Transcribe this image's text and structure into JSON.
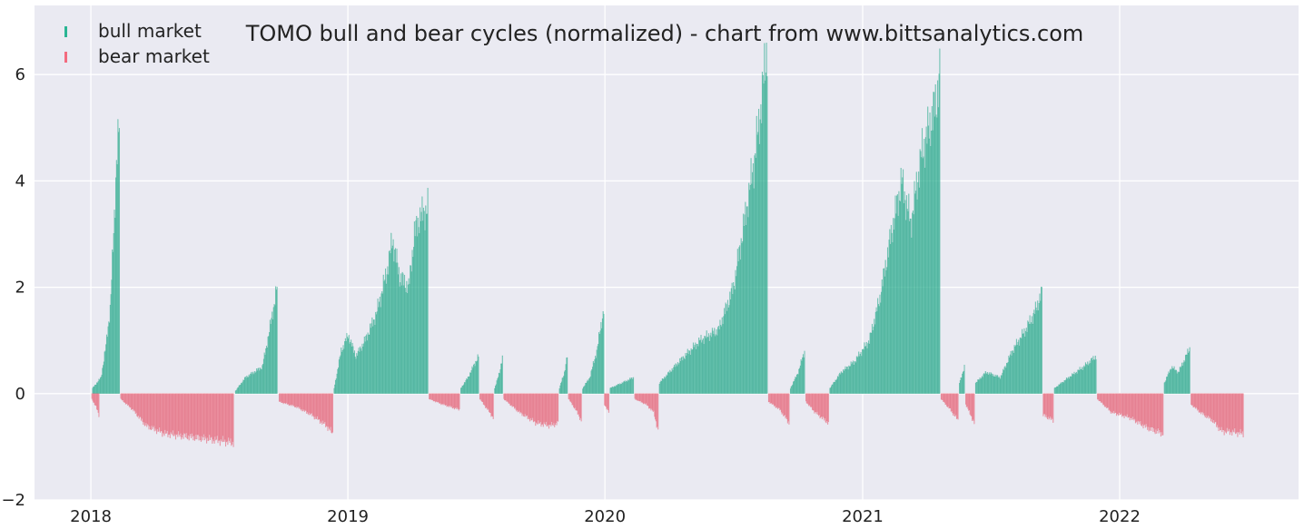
{
  "chart_data": {
    "type": "bar",
    "title": "TOMO bull and bear cycles (normalized)  - chart from www.bittsanalytics.com",
    "xlabel": "",
    "ylabel": "",
    "xlim": [
      "2017-10-13",
      "2022-09-12"
    ],
    "ylim": [
      -2,
      7.3
    ],
    "x_ticks": [
      "2018",
      "2019",
      "2020",
      "2021",
      "2022"
    ],
    "x_tick_dates": [
      "2018-01-01",
      "2019-01-01",
      "2020-01-01",
      "2021-01-01",
      "2022-01-01"
    ],
    "y_ticks": [
      -2,
      0,
      2,
      4,
      6
    ],
    "y_tick_labels": [
      "−2",
      "0",
      "2",
      "4",
      "6"
    ],
    "grid": true,
    "legend_position": "top-left",
    "colors": {
      "bull": "#2ab594",
      "bear": "#f36b7f",
      "background": "#eaeaf2",
      "grid": "#ffffff"
    },
    "series": [
      {
        "name": "bull market",
        "segments": [
          {
            "start": "2018-01-03",
            "end": "2018-02-10",
            "points": [
              [
                "2018-01-03",
                0.1
              ],
              [
                "2018-01-15",
                0.3
              ],
              [
                "2018-01-22",
                0.9
              ],
              [
                "2018-01-28",
                1.6
              ],
              [
                "2018-02-02",
                3.0
              ],
              [
                "2018-02-06",
                4.4
              ],
              [
                "2018-02-10",
                5.0
              ]
            ]
          },
          {
            "start": "2018-07-25",
            "end": "2018-09-22",
            "points": [
              [
                "2018-07-25",
                0.05
              ],
              [
                "2018-08-08",
                0.3
              ],
              [
                "2018-08-20",
                0.4
              ],
              [
                "2018-09-01",
                0.5
              ],
              [
                "2018-09-10",
                1.1
              ],
              [
                "2018-09-18",
                1.7
              ],
              [
                "2018-09-22",
                2.0
              ]
            ]
          },
          {
            "start": "2018-12-12",
            "end": "2019-04-24",
            "points": [
              [
                "2018-12-12",
                0.1
              ],
              [
                "2018-12-22",
                0.8
              ],
              [
                "2019-01-01",
                1.1
              ],
              [
                "2019-01-12",
                0.7
              ],
              [
                "2019-01-25",
                1.0
              ],
              [
                "2019-02-10",
                1.5
              ],
              [
                "2019-02-25",
                2.3
              ],
              [
                "2019-03-05",
                2.9
              ],
              [
                "2019-03-15",
                2.2
              ],
              [
                "2019-03-28",
                2.0
              ],
              [
                "2019-04-05",
                3.0
              ],
              [
                "2019-04-12",
                3.3
              ],
              [
                "2019-04-24",
                3.5
              ]
            ]
          },
          {
            "start": "2019-06-10",
            "end": "2019-07-05",
            "points": [
              [
                "2019-06-10",
                0.1
              ],
              [
                "2019-06-20",
                0.3
              ],
              [
                "2019-07-01",
                0.6
              ],
              [
                "2019-07-05",
                0.7
              ]
            ]
          },
          {
            "start": "2019-07-28",
            "end": "2019-08-08",
            "points": [
              [
                "2019-07-28",
                0.1
              ],
              [
                "2019-08-04",
                0.4
              ],
              [
                "2019-08-08",
                0.7
              ]
            ]
          },
          {
            "start": "2019-10-28",
            "end": "2019-11-08",
            "points": [
              [
                "2019-10-28",
                0.1
              ],
              [
                "2019-11-04",
                0.4
              ],
              [
                "2019-11-08",
                0.7
              ]
            ]
          },
          {
            "start": "2019-11-30",
            "end": "2019-12-30",
            "points": [
              [
                "2019-11-30",
                0.1
              ],
              [
                "2019-12-10",
                0.3
              ],
              [
                "2019-12-20",
                0.8
              ],
              [
                "2019-12-30",
                1.6
              ]
            ]
          },
          {
            "start": "2020-01-08",
            "end": "2020-02-10",
            "points": [
              [
                "2020-01-08",
                0.1
              ],
              [
                "2020-01-25",
                0.2
              ],
              [
                "2020-02-10",
                0.3
              ]
            ]
          },
          {
            "start": "2020-03-18",
            "end": "2020-08-18",
            "points": [
              [
                "2020-03-18",
                0.2
              ],
              [
                "2020-04-15",
                0.6
              ],
              [
                "2020-05-15",
                1.0
              ],
              [
                "2020-06-10",
                1.2
              ],
              [
                "2020-07-01",
                2.0
              ],
              [
                "2020-07-20",
                3.5
              ],
              [
                "2020-08-01",
                4.5
              ],
              [
                "2020-08-10",
                5.5
              ],
              [
                "2020-08-18",
                6.6
              ]
            ]
          },
          {
            "start": "2020-09-20",
            "end": "2020-10-10",
            "points": [
              [
                "2020-09-20",
                0.1
              ],
              [
                "2020-10-01",
                0.4
              ],
              [
                "2020-10-10",
                0.8
              ]
            ]
          },
          {
            "start": "2020-11-15",
            "end": "2021-04-20",
            "points": [
              [
                "2020-11-15",
                0.1
              ],
              [
                "2020-12-01",
                0.4
              ],
              [
                "2020-12-20",
                0.6
              ],
              [
                "2021-01-10",
                1.0
              ],
              [
                "2021-01-25",
                1.8
              ],
              [
                "2021-02-10",
                3.0
              ],
              [
                "2021-02-25",
                4.0
              ],
              [
                "2021-03-10",
                3.2
              ],
              [
                "2021-03-25",
                4.5
              ],
              [
                "2021-04-05",
                5.0
              ],
              [
                "2021-04-15",
                5.5
              ],
              [
                "2021-04-20",
                6.0
              ]
            ]
          },
          {
            "start": "2021-05-18",
            "end": "2021-05-25",
            "points": [
              [
                "2021-05-18",
                0.2
              ],
              [
                "2021-05-25",
                0.5
              ]
            ]
          },
          {
            "start": "2021-06-10",
            "end": "2021-09-12",
            "points": [
              [
                "2021-06-10",
                0.2
              ],
              [
                "2021-06-25",
                0.4
              ],
              [
                "2021-07-15",
                0.3
              ],
              [
                "2021-08-01",
                0.8
              ],
              [
                "2021-08-20",
                1.2
              ],
              [
                "2021-09-01",
                1.5
              ],
              [
                "2021-09-12",
                1.9
              ]
            ]
          },
          {
            "start": "2021-09-30",
            "end": "2021-11-28",
            "points": [
              [
                "2021-09-30",
                0.1
              ],
              [
                "2021-10-20",
                0.3
              ],
              [
                "2021-11-10",
                0.5
              ],
              [
                "2021-11-28",
                0.7
              ]
            ]
          },
          {
            "start": "2022-03-05",
            "end": "2022-04-10",
            "points": [
              [
                "2022-03-05",
                0.2
              ],
              [
                "2022-03-15",
                0.5
              ],
              [
                "2022-03-25",
                0.4
              ],
              [
                "2022-04-10",
                0.85
              ]
            ]
          }
        ]
      },
      {
        "name": "bear market",
        "segments": [
          {
            "start": "2018-01-02",
            "end": "2018-01-12",
            "points": [
              [
                "2018-01-02",
                -0.1
              ],
              [
                "2018-01-08",
                -0.25
              ],
              [
                "2018-01-12",
                -0.4
              ]
            ]
          },
          {
            "start": "2018-02-12",
            "end": "2018-07-22",
            "points": [
              [
                "2018-02-12",
                -0.1
              ],
              [
                "2018-03-01",
                -0.3
              ],
              [
                "2018-03-20",
                -0.6
              ],
              [
                "2018-04-15",
                -0.75
              ],
              [
                "2018-05-15",
                -0.8
              ],
              [
                "2018-06-15",
                -0.85
              ],
              [
                "2018-07-22",
                -0.92
              ]
            ]
          },
          {
            "start": "2018-09-25",
            "end": "2018-12-10",
            "points": [
              [
                "2018-09-25",
                -0.15
              ],
              [
                "2018-10-20",
                -0.25
              ],
              [
                "2018-11-10",
                -0.4
              ],
              [
                "2018-12-01",
                -0.6
              ],
              [
                "2018-12-10",
                -0.75
              ]
            ]
          },
          {
            "start": "2019-04-26",
            "end": "2019-06-08",
            "points": [
              [
                "2019-04-26",
                -0.1
              ],
              [
                "2019-05-15",
                -0.2
              ],
              [
                "2019-06-08",
                -0.3
              ]
            ]
          },
          {
            "start": "2019-07-07",
            "end": "2019-07-26",
            "points": [
              [
                "2019-07-07",
                -0.1
              ],
              [
                "2019-07-18",
                -0.3
              ],
              [
                "2019-07-26",
                -0.45
              ]
            ]
          },
          {
            "start": "2019-08-10",
            "end": "2019-10-26",
            "points": [
              [
                "2019-08-10",
                -0.1
              ],
              [
                "2019-09-01",
                -0.35
              ],
              [
                "2019-09-25",
                -0.55
              ],
              [
                "2019-10-15",
                -0.6
              ],
              [
                "2019-10-26",
                -0.55
              ]
            ]
          },
          {
            "start": "2019-11-10",
            "end": "2019-11-28",
            "points": [
              [
                "2019-11-10",
                -0.1
              ],
              [
                "2019-11-20",
                -0.3
              ],
              [
                "2019-11-28",
                -0.5
              ]
            ]
          },
          {
            "start": "2019-12-31",
            "end": "2020-01-06",
            "points": [
              [
                "2019-12-31",
                -0.2
              ],
              [
                "2020-01-06",
                -0.35
              ]
            ]
          },
          {
            "start": "2020-02-12",
            "end": "2020-03-16",
            "points": [
              [
                "2020-02-12",
                -0.1
              ],
              [
                "2020-02-28",
                -0.2
              ],
              [
                "2020-03-10",
                -0.35
              ],
              [
                "2020-03-16",
                -0.7
              ]
            ]
          },
          {
            "start": "2020-08-20",
            "end": "2020-09-18",
            "points": [
              [
                "2020-08-20",
                -0.15
              ],
              [
                "2020-09-05",
                -0.3
              ],
              [
                "2020-09-18",
                -0.55
              ]
            ]
          },
          {
            "start": "2020-10-12",
            "end": "2020-11-13",
            "points": [
              [
                "2020-10-12",
                -0.15
              ],
              [
                "2020-10-25",
                -0.35
              ],
              [
                "2020-11-13",
                -0.55
              ]
            ]
          },
          {
            "start": "2021-04-22",
            "end": "2021-05-16",
            "points": [
              [
                "2021-04-22",
                -0.1
              ],
              [
                "2021-05-05",
                -0.3
              ],
              [
                "2021-05-16",
                -0.5
              ]
            ]
          },
          {
            "start": "2021-05-27",
            "end": "2021-06-08",
            "points": [
              [
                "2021-05-27",
                -0.2
              ],
              [
                "2021-06-08",
                -0.55
              ]
            ]
          },
          {
            "start": "2021-09-14",
            "end": "2021-09-28",
            "points": [
              [
                "2021-09-14",
                -0.4
              ],
              [
                "2021-09-28",
                -0.5
              ]
            ]
          },
          {
            "start": "2021-11-30",
            "end": "2022-03-03",
            "points": [
              [
                "2021-11-30",
                -0.1
              ],
              [
                "2021-12-20",
                -0.35
              ],
              [
                "2022-01-15",
                -0.45
              ],
              [
                "2022-02-10",
                -0.65
              ],
              [
                "2022-03-03",
                -0.75
              ]
            ]
          },
          {
            "start": "2022-04-12",
            "end": "2022-06-25",
            "points": [
              [
                "2022-04-12",
                -0.2
              ],
              [
                "2022-04-25",
                -0.35
              ],
              [
                "2022-05-12",
                -0.5
              ],
              [
                "2022-05-25",
                -0.7
              ],
              [
                "2022-06-10",
                -0.72
              ],
              [
                "2022-06-25",
                -0.75
              ]
            ]
          }
        ]
      }
    ]
  }
}
